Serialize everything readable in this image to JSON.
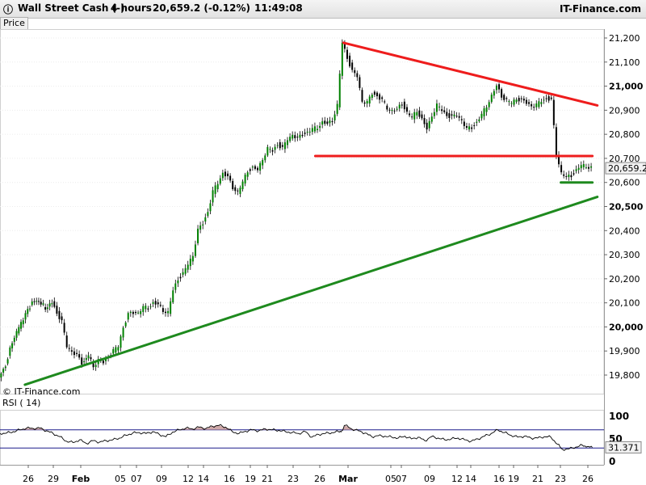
{
  "header": {
    "instrument": "Wall Street Cash (-)",
    "timeframe": "4 hours",
    "quote": "20,659.2 (-0.12%)",
    "time": "11:49:08",
    "brand": "IT-Finance.com"
  },
  "panels": {
    "price_label": "Price",
    "rsi_label": "RSI ( 14)",
    "copyright": "© IT-Finance.com"
  },
  "colors": {
    "resistance": "#ee1c1c",
    "support": "#1e8a1e",
    "candle_up": "#008000",
    "candle_down": "#000000",
    "rsi_line": "#000000",
    "rsi_band": "#1a1a8c",
    "rsi_fill": "#caa0a0"
  },
  "chart_data": [
    {
      "type": "candlestick",
      "title": "Wall Street Cash (-)",
      "ylim": [
        19750,
        21250
      ],
      "y_ticks": [
        "21,200",
        "21,100",
        "21,000",
        "20,900",
        "20,800",
        "20,700",
        "20,600",
        "20,500",
        "20,400",
        "20,300",
        "20,200",
        "20,100",
        "20,000",
        "19,900",
        "19,800"
      ],
      "x_ticks": [
        "26",
        "29",
        "Feb",
        "05",
        "07",
        "09",
        "12",
        "14",
        "16",
        "19",
        "21",
        "23",
        "26",
        "Mar",
        "05",
        "07",
        "09",
        "12",
        "14",
        "16",
        "19",
        "21",
        "23",
        "26"
      ],
      "last_price": "20,659.2",
      "close_path": [
        [
          0,
          19790
        ],
        [
          4,
          19840
        ],
        [
          8,
          19940
        ],
        [
          12,
          20000
        ],
        [
          16,
          20050
        ],
        [
          20,
          20100
        ],
        [
          24,
          20110
        ],
        [
          28,
          20080
        ],
        [
          32,
          20100
        ],
        [
          35,
          20060
        ],
        [
          38,
          20020
        ],
        [
          41,
          19920
        ],
        [
          44,
          19900
        ],
        [
          47,
          19880
        ],
        [
          50,
          19850
        ],
        [
          54,
          19880
        ],
        [
          57,
          19840
        ],
        [
          60,
          19860
        ],
        [
          63,
          19850
        ],
        [
          66,
          19880
        ],
        [
          69,
          19900
        ],
        [
          72,
          19920
        ],
        [
          75,
          20000
        ],
        [
          78,
          20050
        ],
        [
          81,
          20060
        ],
        [
          84,
          20060
        ],
        [
          87,
          20080
        ],
        [
          90,
          20080
        ],
        [
          93,
          20100
        ],
        [
          96,
          20090
        ],
        [
          99,
          20070
        ],
        [
          102,
          20060
        ],
        [
          105,
          20150
        ],
        [
          108,
          20200
        ],
        [
          111,
          20220
        ],
        [
          114,
          20260
        ],
        [
          117,
          20300
        ],
        [
          120,
          20400
        ],
        [
          123,
          20430
        ],
        [
          126,
          20480
        ],
        [
          129,
          20560
        ],
        [
          132,
          20600
        ],
        [
          135,
          20640
        ],
        [
          138,
          20620
        ],
        [
          141,
          20580
        ],
        [
          144,
          20560
        ],
        [
          147,
          20600
        ],
        [
          150,
          20650
        ],
        [
          153,
          20660
        ],
        [
          156,
          20650
        ],
        [
          159,
          20700
        ],
        [
          162,
          20740
        ],
        [
          165,
          20730
        ],
        [
          168,
          20760
        ],
        [
          171,
          20740
        ],
        [
          174,
          20780
        ],
        [
          177,
          20800
        ],
        [
          180,
          20780
        ],
        [
          183,
          20800
        ],
        [
          186,
          20810
        ],
        [
          189,
          20820
        ],
        [
          192,
          20830
        ],
        [
          195,
          20850
        ],
        [
          198,
          20840
        ],
        [
          201,
          20860
        ],
        [
          204,
          20920
        ],
        [
          207,
          21180
        ],
        [
          210,
          21120
        ],
        [
          213,
          21060
        ],
        [
          216,
          21040
        ],
        [
          219,
          20940
        ],
        [
          222,
          20930
        ],
        [
          225,
          20970
        ],
        [
          228,
          20960
        ],
        [
          231,
          20940
        ],
        [
          234,
          20910
        ],
        [
          237,
          20900
        ],
        [
          240,
          20900
        ],
        [
          243,
          20930
        ],
        [
          246,
          20890
        ],
        [
          249,
          20870
        ],
        [
          252,
          20900
        ],
        [
          255,
          20860
        ],
        [
          258,
          20820
        ],
        [
          261,
          20880
        ],
        [
          264,
          20920
        ],
        [
          267,
          20900
        ],
        [
          270,
          20880
        ],
        [
          273,
          20870
        ],
        [
          276,
          20880
        ],
        [
          279,
          20860
        ],
        [
          282,
          20820
        ],
        [
          285,
          20830
        ],
        [
          288,
          20850
        ],
        [
          291,
          20880
        ],
        [
          294,
          20920
        ],
        [
          297,
          20960
        ],
        [
          300,
          21000
        ],
        [
          303,
          20960
        ],
        [
          306,
          20940
        ],
        [
          309,
          20930
        ],
        [
          312,
          20950
        ],
        [
          315,
          20940
        ],
        [
          318,
          20930
        ],
        [
          321,
          20920
        ],
        [
          324,
          20920
        ],
        [
          327,
          20940
        ],
        [
          330,
          20950
        ],
        [
          333,
          20940
        ],
        [
          336,
          20720
        ],
        [
          339,
          20640
        ],
        [
          342,
          20620
        ],
        [
          345,
          20630
        ],
        [
          348,
          20650
        ],
        [
          351,
          20670
        ],
        [
          354,
          20670
        ],
        [
          357,
          20660
        ]
      ],
      "lines": [
        {
          "name": "",
          "color": "resistance",
          "points": [
            [
              207,
              21180
            ],
            [
              360,
              20920
            ]
          ]
        },
        {
          "name": "",
          "color": "resistance",
          "points": [
            [
              190,
              20710
            ],
            [
              357,
              20710
            ]
          ]
        },
        {
          "name": "",
          "color": "support",
          "points": [
            [
              338,
              20600
            ],
            [
              357,
              20600
            ]
          ]
        },
        {
          "name": "",
          "color": "support",
          "points": [
            [
              15,
              19760
            ],
            [
              360,
              20540
            ]
          ]
        }
      ]
    },
    {
      "type": "line",
      "title": "RSI ( 14)",
      "ylim": [
        0,
        100
      ],
      "y_ticks": [
        "100",
        "50",
        "0"
      ],
      "bands": [
        70,
        30
      ],
      "last_value": "31.371",
      "values": [
        [
          0,
          62
        ],
        [
          4,
          63
        ],
        [
          8,
          66
        ],
        [
          12,
          70
        ],
        [
          16,
          74
        ],
        [
          20,
          73
        ],
        [
          24,
          74
        ],
        [
          28,
          68
        ],
        [
          32,
          62
        ],
        [
          36,
          55
        ],
        [
          40,
          45
        ],
        [
          44,
          42
        ],
        [
          48,
          48
        ],
        [
          52,
          40
        ],
        [
          56,
          46
        ],
        [
          60,
          43
        ],
        [
          64,
          46
        ],
        [
          68,
          48
        ],
        [
          72,
          52
        ],
        [
          76,
          58
        ],
        [
          80,
          63
        ],
        [
          84,
          64
        ],
        [
          88,
          62
        ],
        [
          92,
          66
        ],
        [
          96,
          60
        ],
        [
          100,
          55
        ],
        [
          104,
          65
        ],
        [
          108,
          70
        ],
        [
          112,
          74
        ],
        [
          116,
          72
        ],
        [
          120,
          76
        ],
        [
          124,
          73
        ],
        [
          128,
          78
        ],
        [
          132,
          80
        ],
        [
          136,
          76
        ],
        [
          140,
          66
        ],
        [
          144,
          62
        ],
        [
          148,
          67
        ],
        [
          152,
          70
        ],
        [
          156,
          68
        ],
        [
          160,
          72
        ],
        [
          164,
          70
        ],
        [
          168,
          69
        ],
        [
          172,
          66
        ],
        [
          176,
          64
        ],
        [
          180,
          62
        ],
        [
          184,
          66
        ],
        [
          188,
          54
        ],
        [
          192,
          60
        ],
        [
          196,
          62
        ],
        [
          200,
          64
        ],
        [
          204,
          66
        ],
        [
          206,
          68
        ],
        [
          208,
          80
        ],
        [
          212,
          72
        ],
        [
          216,
          68
        ],
        [
          220,
          63
        ],
        [
          224,
          55
        ],
        [
          228,
          57
        ],
        [
          232,
          56
        ],
        [
          236,
          54
        ],
        [
          240,
          52
        ],
        [
          244,
          56
        ],
        [
          248,
          50
        ],
        [
          252,
          54
        ],
        [
          256,
          46
        ],
        [
          260,
          55
        ],
        [
          264,
          52
        ],
        [
          268,
          48
        ],
        [
          272,
          50
        ],
        [
          276,
          52
        ],
        [
          280,
          48
        ],
        [
          284,
          45
        ],
        [
          288,
          50
        ],
        [
          292,
          56
        ],
        [
          296,
          62
        ],
        [
          300,
          70
        ],
        [
          304,
          64
        ],
        [
          308,
          58
        ],
        [
          312,
          54
        ],
        [
          316,
          56
        ],
        [
          320,
          52
        ],
        [
          324,
          52
        ],
        [
          328,
          55
        ],
        [
          332,
          54
        ],
        [
          336,
          38
        ],
        [
          339,
          27
        ],
        [
          343,
          28
        ],
        [
          347,
          32
        ],
        [
          351,
          36
        ],
        [
          354,
          33
        ],
        [
          357,
          31
        ]
      ]
    }
  ]
}
